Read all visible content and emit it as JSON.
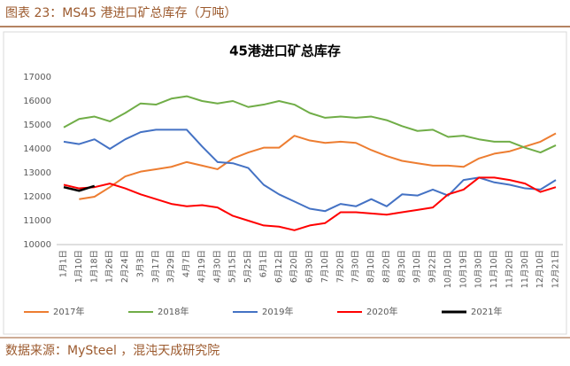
{
  "header": "图表 23：MS45 港进口矿总库存（万吨）",
  "source": "数据来源：MySteel ，混沌天成研究院",
  "chart_data": {
    "type": "line",
    "title": "45港进口矿总库存",
    "categories": [
      "1月1日",
      "1月10日",
      "1月18日",
      "1月26日",
      "2月24日",
      "3月3日",
      "3月17日",
      "3月29日",
      "4月7日",
      "4月19日",
      "4月30日",
      "5月15日",
      "5月25日",
      "6月1日",
      "6月12日",
      "6月20日",
      "6月30日",
      "7月10日",
      "7月20日",
      "7月30日",
      "8月10日",
      "8月20日",
      "8月30日",
      "9月10日",
      "9月22日",
      "10月10日",
      "10月19日",
      "10月30日",
      "11月10日",
      "11月20日",
      "11月30日",
      "12月10日",
      "12月21日"
    ],
    "series": [
      {
        "name": "2017年",
        "color": "#ED7D31",
        "values": [
          null,
          11900,
          12000,
          12400,
          12850,
          13050,
          13150,
          13250,
          13450,
          13300,
          13150,
          13600,
          13850,
          14050,
          14050,
          14550,
          14350,
          14250,
          14300,
          14250,
          13950,
          13700,
          13500,
          13400,
          13300,
          13300,
          13250,
          13600,
          13800,
          13900,
          14100,
          14300,
          14650
        ]
      },
      {
        "name": "2018年",
        "color": "#70AD47",
        "values": [
          14900,
          15250,
          15350,
          15150,
          15500,
          15900,
          15850,
          16100,
          16200,
          16000,
          15900,
          16000,
          15750,
          15850,
          16000,
          15850,
          15500,
          15300,
          15350,
          15300,
          15350,
          15200,
          14950,
          14750,
          14800,
          14500,
          14550,
          14400,
          14300,
          14300,
          14050,
          13850,
          14150
        ]
      },
      {
        "name": "2019年",
        "color": "#4472C4",
        "values": [
          14300,
          14200,
          14400,
          14000,
          14400,
          14700,
          14800,
          14800,
          14800,
          14100,
          13450,
          13400,
          13200,
          12500,
          12100,
          11800,
          11500,
          11400,
          11700,
          11600,
          11900,
          11600,
          12100,
          12050,
          12300,
          12050,
          12700,
          12800,
          12600,
          12500,
          12350,
          12300,
          12700
        ]
      },
      {
        "name": "2020年",
        "color": "#FF0000",
        "values": [
          12500,
          12350,
          12400,
          12550,
          12350,
          12100,
          11900,
          11700,
          11600,
          11650,
          11550,
          11200,
          11000,
          10800,
          10750,
          10600,
          10800,
          10900,
          11350,
          11350,
          11300,
          11250,
          11350,
          11450,
          11550,
          12100,
          12300,
          12800,
          12800,
          12700,
          12550,
          12200,
          12400
        ]
      },
      {
        "name": "2021年",
        "color": "#000000",
        "values": [
          12400,
          12250,
          12450,
          null,
          null,
          null,
          null,
          null,
          null,
          null,
          null,
          null,
          null,
          null,
          null,
          null,
          null,
          null,
          null,
          null,
          null,
          null,
          null,
          null,
          null,
          null,
          null,
          null,
          null,
          null,
          null,
          null,
          null
        ]
      }
    ],
    "ylim": [
      10000,
      17000
    ],
    "yticks": [
      10000,
      11000,
      12000,
      13000,
      14000,
      15000,
      16000,
      17000
    ],
    "grid": false
  }
}
